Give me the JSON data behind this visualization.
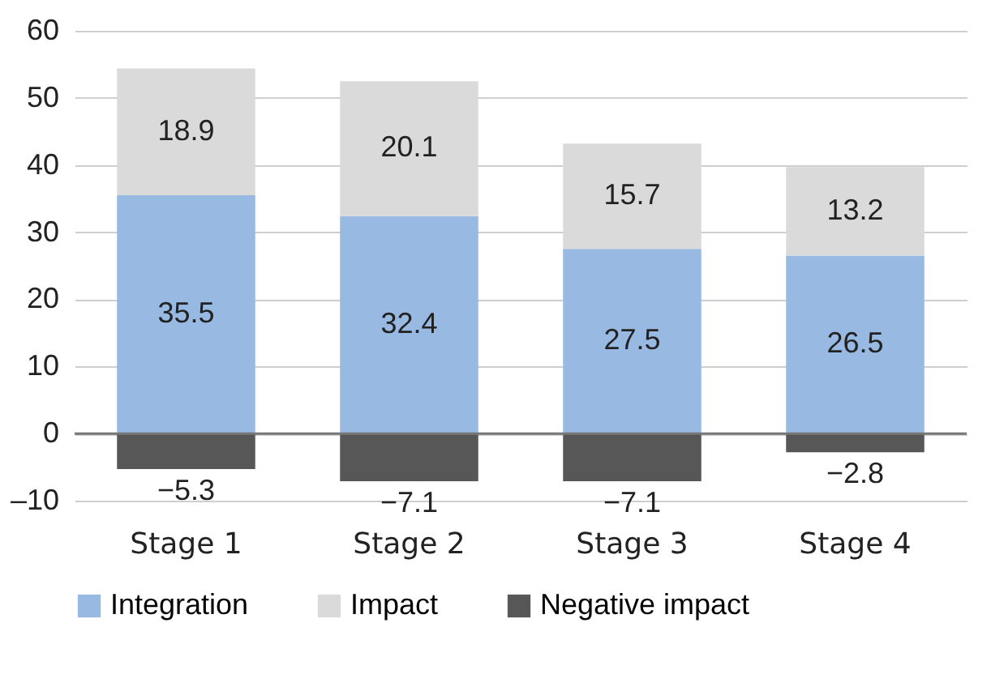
{
  "chart_data": {
    "type": "bar",
    "stacked": true,
    "categories": [
      "Stage 1",
      "Stage 2",
      "Stage 3",
      "Stage 4"
    ],
    "series": [
      {
        "name": "Integration",
        "color": "#98b9e2",
        "values": [
          35.5,
          32.4,
          27.5,
          26.5
        ]
      },
      {
        "name": "Impact",
        "color": "#dadada",
        "values": [
          18.9,
          20.1,
          15.7,
          13.2
        ]
      },
      {
        "name": "Negative impact",
        "color": "#575757",
        "values": [
          -5.3,
          -7.1,
          -7.1,
          -2.8
        ]
      }
    ],
    "ylim": [
      -10,
      60
    ],
    "yticks": [
      {
        "value": -10,
        "label": "–10"
      },
      0,
      10,
      20,
      30,
      40,
      50,
      60
    ],
    "grid": "y",
    "legend": "bottom",
    "data_labels": true
  }
}
